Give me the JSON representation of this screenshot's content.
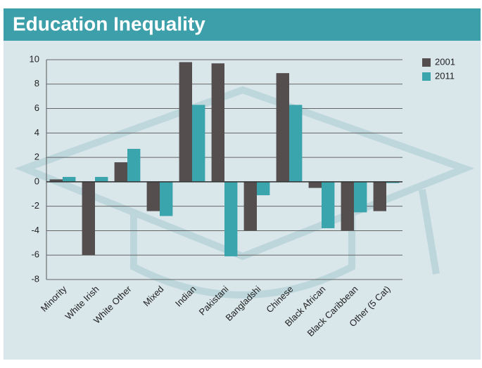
{
  "chart_data": {
    "type": "bar",
    "title": "Education Inequality",
    "categories": [
      "Minority",
      "White Irish",
      "White Other",
      "Mixed",
      "Indian",
      "Pakistani",
      "Bangladshi",
      "Chinese",
      "Black African",
      "Black Caribbean",
      "Other (5 Cat)"
    ],
    "series": [
      {
        "name": "2001",
        "color": "#544e4f",
        "values": [
          0.2,
          -6.0,
          1.6,
          -2.4,
          9.8,
          9.7,
          -4.0,
          8.9,
          -0.5,
          -4.0,
          -2.4
        ]
      },
      {
        "name": "2011",
        "color": "#3aa5ad",
        "values": [
          0.4,
          0.4,
          2.7,
          -2.8,
          6.3,
          -6.1,
          -1.1,
          6.3,
          -3.8,
          -2.5,
          -0.1
        ]
      }
    ],
    "ylim": [
      -8,
      10
    ],
    "yticks": [
      -8,
      -6,
      -4,
      -2,
      0,
      2,
      4,
      6,
      8,
      10
    ],
    "grid": true
  }
}
